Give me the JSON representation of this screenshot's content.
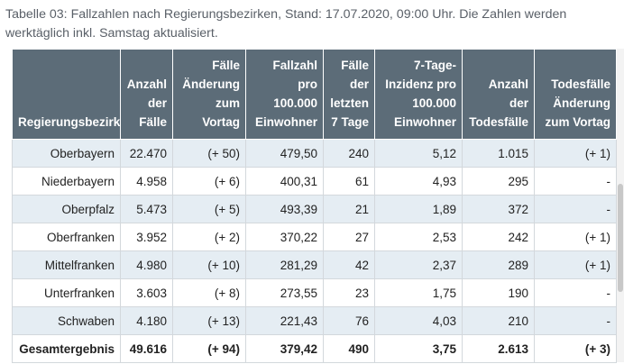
{
  "caption": "Tabelle 03: Fallzahlen nach Regierungsbezirken, Stand: 17.07.2020, 09:00 Uhr. Die Zahlen werden werktäglich inkl. Samstag aktualisiert.",
  "table": {
    "headers": [
      "Regierungsbezirk",
      "Anzahl der Fälle",
      "Fälle Änderung zum Vortag",
      "Fallzahl pro 100.000 Einwohner",
      "Fälle der letzten 7 Tage",
      "7-Tage-Inzidenz pro 100.000 Einwohner",
      "Anzahl der Todesfälle",
      "Todesfälle Änderung zum Vortag"
    ],
    "rows": [
      [
        "Oberbayern",
        "22.470",
        "(+ 50)",
        "479,50",
        "240",
        "5,12",
        "1.015",
        "(+ 1)"
      ],
      [
        "Niederbayern",
        "4.958",
        "(+ 6)",
        "400,31",
        "61",
        "4,93",
        "295",
        "-"
      ],
      [
        "Oberpfalz",
        "5.473",
        "(+ 5)",
        "493,39",
        "21",
        "1,89",
        "372",
        "-"
      ],
      [
        "Oberfranken",
        "3.952",
        "(+ 2)",
        "370,22",
        "27",
        "2,53",
        "242",
        "(+ 1)"
      ],
      [
        "Mittelfranken",
        "4.980",
        "(+ 10)",
        "281,29",
        "42",
        "2,37",
        "289",
        "(+ 1)"
      ],
      [
        "Unterfranken",
        "3.603",
        "(+ 8)",
        "273,55",
        "23",
        "1,75",
        "190",
        "-"
      ],
      [
        "Schwaben",
        "4.180",
        "(+ 13)",
        "221,43",
        "76",
        "4,03",
        "210",
        "-"
      ]
    ],
    "total": [
      "Gesamtergebnis",
      "49.616",
      "(+ 94)",
      "379,42",
      "490",
      "3,75",
      "2.613",
      "(+ 3)"
    ]
  }
}
